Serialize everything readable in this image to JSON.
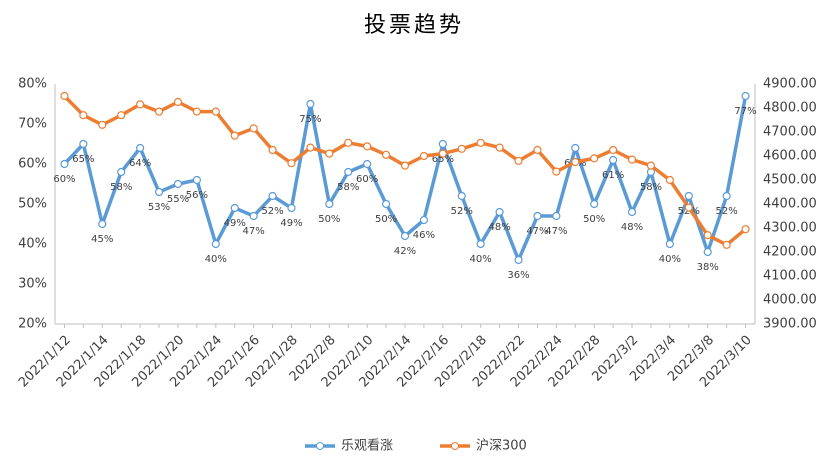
{
  "chart_data": {
    "type": "line",
    "title": "投票趋势",
    "categories": [
      "2022/1/12",
      null,
      "2022/1/14",
      null,
      "2022/1/18",
      null,
      "2022/1/20",
      null,
      "2022/1/24",
      null,
      "2022/1/26",
      null,
      "2022/1/28",
      null,
      "2022/2/8",
      null,
      "2022/2/10",
      null,
      "2022/2/14",
      null,
      "2022/2/16",
      null,
      "2022/2/18",
      null,
      "2022/2/22",
      null,
      "2022/2/24",
      null,
      "2022/2/28",
      null,
      "2022/3/2",
      null,
      "2022/3/4",
      null,
      "2022/3/8",
      null,
      "2022/3/10"
    ],
    "series": [
      {
        "name": "乐观看涨",
        "color": "#5b9bd5",
        "axis": "y",
        "values": [
          60,
          65,
          45,
          58,
          64,
          53,
          55,
          56,
          40,
          49,
          47,
          52,
          49,
          75,
          50,
          58,
          60,
          50,
          42,
          46,
          65,
          52,
          40,
          48,
          36,
          47,
          47,
          64,
          50,
          61,
          48,
          58,
          40,
          52,
          38,
          52,
          77
        ],
        "value_labels": [
          "60%",
          "65%",
          "45%",
          "58%",
          "64%",
          "53%",
          "55%",
          "56%",
          "40%",
          "49%",
          "47%",
          "52%",
          "49%",
          "75%",
          "50%",
          "58%",
          "60%",
          "50%",
          "42%",
          "46%",
          "65%",
          "52%",
          "40%",
          "48%",
          "36%",
          "47%",
          "47%",
          "64%",
          "50%",
          "61%",
          "48%",
          "58%",
          "40%",
          "52%",
          "38%",
          "52%",
          "77%"
        ]
      },
      {
        "name": "沪深300",
        "color": "#ed7d31",
        "axis": "y2",
        "values": [
          4850,
          4770,
          4730,
          4770,
          4815,
          4785,
          4825,
          4785,
          4785,
          4685,
          4715,
          4625,
          4570,
          4635,
          4610,
          4655,
          4640,
          4605,
          4560,
          4600,
          4610,
          4630,
          4655,
          4635,
          4580,
          4625,
          4535,
          4575,
          4590,
          4625,
          4585,
          4560,
          4500,
          4385,
          4270,
          4230,
          4295
        ]
      }
    ],
    "ylim": [
      20,
      80
    ],
    "yticks": [
      {
        "value": 20,
        "label": "20%"
      },
      {
        "value": 30,
        "label": "30%"
      },
      {
        "value": 40,
        "label": "40%"
      },
      {
        "value": 50,
        "label": "50%"
      },
      {
        "value": 60,
        "label": "60%"
      },
      {
        "value": 70,
        "label": "70%"
      },
      {
        "value": 80,
        "label": "80%"
      }
    ],
    "y2lim": [
      3900,
      4900
    ],
    "y2ticks": [
      {
        "value": 3900,
        "label": "3900.00"
      },
      {
        "value": 4000,
        "label": "4000.00"
      },
      {
        "value": 4100,
        "label": "4100.00"
      },
      {
        "value": 4200,
        "label": "4200.00"
      },
      {
        "value": 4300,
        "label": "4300.00"
      },
      {
        "value": 4400,
        "label": "4400.00"
      },
      {
        "value": 4500,
        "label": "4500.00"
      },
      {
        "value": 4600,
        "label": "4600.00"
      },
      {
        "value": 4700,
        "label": "4700.00"
      },
      {
        "value": 4800,
        "label": "4800.00"
      },
      {
        "value": 4900,
        "label": "4900.00"
      }
    ],
    "grid": false,
    "legend": "bottom"
  }
}
